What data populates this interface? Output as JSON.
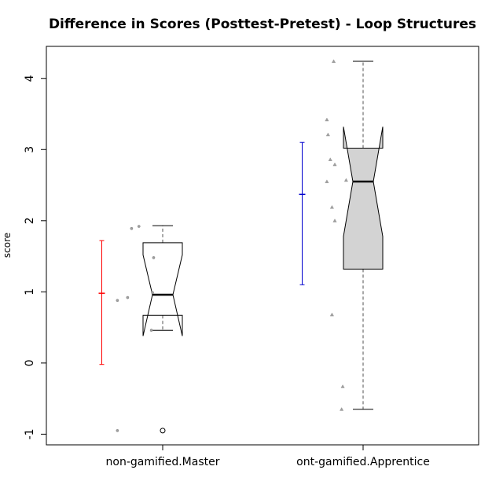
{
  "chart_data": {
    "type": "boxplot",
    "title": "Difference in Scores (Posttest-Pretest) - Loop Structures",
    "xlabel": "",
    "ylabel": "score",
    "ylim": [
      -1.15,
      4.45
    ],
    "yticks": [
      -1,
      0,
      1,
      2,
      3,
      4
    ],
    "categories": [
      "non-gamified.Master",
      "ont-gamified.Apprentice"
    ],
    "grid": false,
    "notched": true,
    "boxes": [
      {
        "category": "non-gamified.Master",
        "fill": "#ffffff",
        "whisker_low": 0.46,
        "q1": 0.67,
        "median": 0.96,
        "q3": 1.69,
        "whisker_high": 1.93,
        "notch_low": 0.38,
        "notch_high": 1.52,
        "outliers": [
          -0.95
        ]
      },
      {
        "category": "ont-gamified.Apprentice",
        "fill": "#d3d3d3",
        "whisker_low": -0.65,
        "q1": 1.32,
        "median": 2.55,
        "q3": 3.02,
        "whisker_high": 4.24,
        "notch_low": 1.78,
        "notch_high": 3.32,
        "outliers": []
      }
    ],
    "mean_sd": [
      {
        "category": "non-gamified.Master",
        "mean": 0.98,
        "low": -0.02,
        "high": 1.72,
        "color": "#ff0000"
      },
      {
        "category": "ont-gamified.Apprentice",
        "mean": 2.37,
        "low": 1.1,
        "high": 3.1,
        "color": "#0000cd"
      }
    ],
    "jitter_points": [
      {
        "category": "non-gamified.Master",
        "shape": "circle",
        "points": [
          [
            -0.8,
            0.88
          ],
          [
            -0.62,
            0.92
          ],
          [
            -0.55,
            1.89
          ],
          [
            -0.42,
            1.92
          ],
          [
            -0.16,
            1.48
          ],
          [
            -0.18,
            0.99
          ],
          [
            -0.2,
            0.46
          ],
          [
            -0.8,
            -0.95
          ]
        ]
      },
      {
        "category": "ont-gamified.Apprentice",
        "shape": "triangle",
        "points": [
          [
            -0.52,
            4.24
          ],
          [
            -0.64,
            3.42
          ],
          [
            -0.62,
            3.21
          ],
          [
            -0.58,
            2.86
          ],
          [
            -0.5,
            2.79
          ],
          [
            -0.3,
            2.57
          ],
          [
            -0.64,
            2.55
          ],
          [
            -0.55,
            2.19
          ],
          [
            -0.5,
            2.0
          ],
          [
            -0.55,
            0.68
          ],
          [
            -0.36,
            -0.33
          ],
          [
            -0.38,
            -0.65
          ]
        ]
      }
    ],
    "colors": {
      "box_stroke": "#000000",
      "point": "#a0a0a0",
      "whisker": "#505050"
    }
  }
}
